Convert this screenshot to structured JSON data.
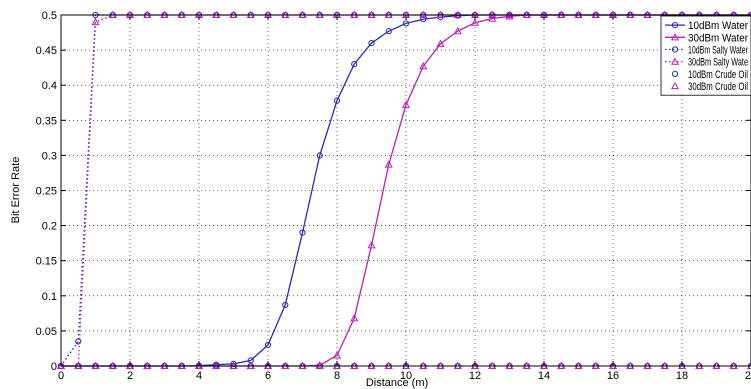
{
  "chart_data": {
    "type": "line",
    "xlabel": "Distance (m)",
    "ylabel": "Bit Error Rate",
    "xlim": [
      0,
      20
    ],
    "ylim": [
      0,
      0.5
    ],
    "xticks": [
      0,
      2,
      4,
      6,
      8,
      10,
      12,
      14,
      16,
      18,
      20
    ],
    "xtick_labels": [
      "0",
      "2",
      "4",
      "6",
      "8",
      "10",
      "12",
      "14",
      "16",
      "18",
      "20"
    ],
    "yticks": [
      0,
      0.05,
      0.1,
      0.15,
      0.2,
      0.25,
      0.3,
      0.35,
      0.4,
      0.45,
      0.5
    ],
    "ytick_labels": [
      "0",
      "0.05",
      "0.1",
      "0.15",
      "0.2",
      "0.25",
      "0.3",
      "0.35",
      "0.4",
      "0.45",
      "0.5"
    ],
    "grid": true,
    "legend_position": "top-right",
    "x": [
      0,
      0.5,
      1,
      1.5,
      2,
      2.5,
      3,
      3.5,
      4,
      4.5,
      5,
      5.5,
      6,
      6.5,
      7,
      7.5,
      8,
      8.5,
      9,
      9.5,
      10,
      10.5,
      11,
      11.5,
      12,
      12.5,
      13,
      13.5,
      14,
      14.5,
      15,
      15.5,
      16,
      16.5,
      17,
      17.5,
      18,
      18.5,
      19,
      19.5,
      20
    ],
    "series": [
      {
        "name": "10dBm Water",
        "color": "#2a2ab8",
        "line_style": "solid",
        "marker": "circle",
        "values": [
          0,
          0,
          0,
          0,
          0,
          0,
          0,
          0,
          0.0005,
          0.002,
          0.003,
          0.008,
          0.03,
          0.087,
          0.19,
          0.3,
          0.378,
          0.43,
          0.46,
          0.477,
          0.488,
          0.494,
          0.497,
          0.499,
          0.5,
          0.5,
          0.5,
          0.5,
          0.5,
          0.5,
          0.5,
          0.5,
          0.5,
          0.5,
          0.5,
          0.5,
          0.5,
          0.5,
          0.5,
          0.5,
          0.5
        ]
      },
      {
        "name": "30dBm Water",
        "color": "#b820b8",
        "line_style": "solid",
        "marker": "triangle",
        "values": [
          0,
          0,
          0,
          0,
          0,
          0,
          0,
          0,
          0,
          0,
          0,
          0,
          0,
          0,
          0,
          0.001,
          0.015,
          0.068,
          0.172,
          0.287,
          0.372,
          0.427,
          0.459,
          0.477,
          0.489,
          0.495,
          0.498,
          0.5,
          0.5,
          0.5,
          0.5,
          0.5,
          0.5,
          0.5,
          0.5,
          0.5,
          0.5,
          0.5,
          0.5,
          0.5,
          0.5
        ]
      },
      {
        "name": "10dBm Salty Water",
        "color": "#2a2ab8",
        "line_style": "dotted",
        "marker": "circle",
        "values": [
          0,
          0.035,
          0.5,
          0.5,
          0.5,
          0.5,
          0.5,
          0.5,
          0.5,
          0.5,
          0.5,
          0.5,
          0.5,
          0.5,
          0.5,
          0.5,
          0.5,
          0.5,
          0.5,
          0.5,
          0.5,
          0.5,
          0.5,
          0.5,
          0.5,
          0.5,
          0.5,
          0.5,
          0.5,
          0.5,
          0.5,
          0.5,
          0.5,
          0.5,
          0.5,
          0.5,
          0.5,
          0.5,
          0.5,
          0.5,
          0.5
        ]
      },
      {
        "name": "30dBm Salty Wate",
        "color": "#b820b8",
        "line_style": "dotted",
        "marker": "triangle",
        "values": [
          0,
          0,
          0.49,
          0.5,
          0.5,
          0.5,
          0.5,
          0.5,
          0.5,
          0.5,
          0.5,
          0.5,
          0.5,
          0.5,
          0.5,
          0.5,
          0.5,
          0.5,
          0.5,
          0.5,
          0.5,
          0.5,
          0.5,
          0.5,
          0.5,
          0.5,
          0.5,
          0.5,
          0.5,
          0.5,
          0.5,
          0.5,
          0.5,
          0.5,
          0.5,
          0.5,
          0.5,
          0.5,
          0.5,
          0.5,
          0.5
        ]
      },
      {
        "name": "10dBm Crude Oil",
        "color": "#2a2ab8",
        "line_style": "none",
        "marker": "circle",
        "values": [
          0,
          0,
          0,
          0,
          0,
          0,
          0,
          0,
          0,
          0,
          0,
          0,
          0,
          0,
          0,
          0,
          0,
          0,
          0,
          0,
          0,
          0,
          0,
          0,
          0,
          0,
          0,
          0,
          0,
          0,
          0,
          0,
          0,
          0,
          0,
          0,
          0,
          0,
          0,
          0,
          0
        ]
      },
      {
        "name": "30dBm Crude Oil",
        "color": "#b820b8",
        "line_style": "none",
        "marker": "triangle",
        "values": [
          0,
          0,
          0,
          0,
          0,
          0,
          0,
          0,
          0,
          0,
          0,
          0,
          0,
          0,
          0,
          0,
          0,
          0,
          0,
          0,
          0,
          0,
          0,
          0,
          0,
          0,
          0,
          0,
          0,
          0,
          0,
          0,
          0,
          0,
          0,
          0,
          0,
          0,
          0,
          0,
          0
        ]
      }
    ]
  }
}
